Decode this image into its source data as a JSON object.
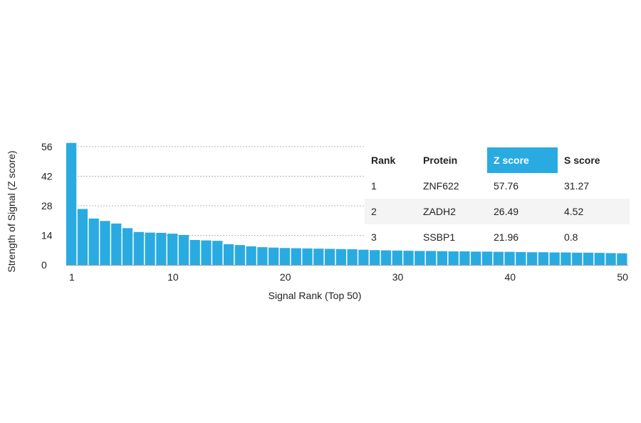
{
  "chart_data": {
    "type": "bar",
    "xlabel": "Signal Rank (Top 50)",
    "ylabel": "Strength of Signal (Z score)",
    "ylim": [
      0,
      58
    ],
    "yticks": [
      0,
      14,
      28,
      42,
      56
    ],
    "xticks": [
      1,
      10,
      20,
      30,
      40,
      50
    ],
    "bar_color": "#29abe2",
    "grid": "dotted horizontal at y ticks",
    "x": [
      1,
      2,
      3,
      4,
      5,
      6,
      7,
      8,
      9,
      10,
      11,
      12,
      13,
      14,
      15,
      16,
      17,
      18,
      19,
      20,
      21,
      22,
      23,
      24,
      25,
      26,
      27,
      28,
      29,
      30,
      31,
      32,
      33,
      34,
      35,
      36,
      37,
      38,
      39,
      40,
      41,
      42,
      43,
      44,
      45,
      46,
      47,
      48,
      49,
      50
    ],
    "values": [
      57.76,
      26.49,
      21.96,
      20.8,
      19.6,
      17.4,
      15.6,
      15.3,
      15.2,
      14.8,
      14.2,
      11.8,
      11.6,
      11.4,
      9.8,
      9.4,
      8.8,
      8.4,
      8.2,
      8.0,
      7.9,
      7.8,
      7.7,
      7.6,
      7.5,
      7.4,
      7.2,
      7.0,
      6.9,
      6.8,
      6.7,
      6.6,
      6.6,
      6.5,
      6.4,
      6.4,
      6.3,
      6.3,
      6.2,
      6.2,
      6.1,
      6.0,
      6.0,
      5.9,
      5.9,
      5.8,
      5.8,
      5.7,
      5.6,
      5.5
    ]
  },
  "table": {
    "headers": [
      "Rank",
      "Protein",
      "Z score",
      "S score"
    ],
    "highlight_color": "#29abe2",
    "rows": [
      [
        "1",
        "ZNF622",
        "57.76",
        "31.27"
      ],
      [
        "2",
        "ZADH2",
        "26.49",
        "4.52"
      ],
      [
        "3",
        "SSBP1",
        "21.96",
        "0.8"
      ]
    ]
  }
}
